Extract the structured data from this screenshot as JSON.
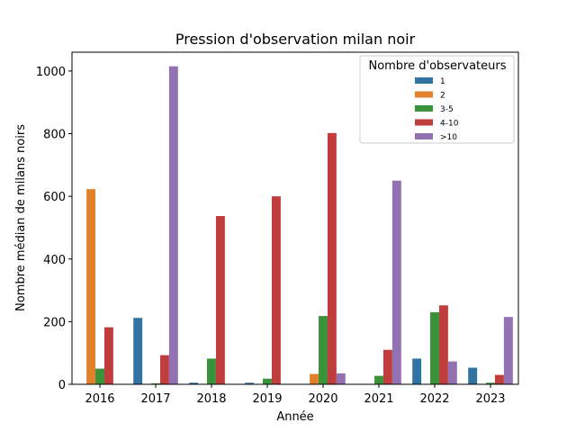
{
  "chart_data": {
    "type": "bar",
    "title": "Pression d'observation milan noir",
    "xlabel": "Année",
    "ylabel": "Nombre médian de milans noirs",
    "ylim": [
      0,
      1060
    ],
    "yticks": [
      0,
      200,
      400,
      600,
      800,
      1000
    ],
    "categories": [
      "2016",
      "2017",
      "2018",
      "2019",
      "2020",
      "2021",
      "2022",
      "2023"
    ],
    "legend_title": "Nombre d'observateurs",
    "legend_position": "top-right",
    "grid": false,
    "series": [
      {
        "name": "1",
        "color": "#3274a1",
        "values": [
          0,
          212,
          5,
          5,
          0,
          0,
          82,
          53
        ]
      },
      {
        "name": "2",
        "color": "#e1812c",
        "values": [
          623,
          0,
          0,
          0,
          33,
          0,
          0,
          0
        ]
      },
      {
        "name": "3-5",
        "color": "#3a923a",
        "values": [
          50,
          3,
          82,
          18,
          218,
          27,
          230,
          5
        ]
      },
      {
        "name": "4-10",
        "color": "#c03d3e",
        "values": [
          182,
          93,
          537,
          600,
          802,
          110,
          252,
          30
        ]
      },
      {
        "name": ">10",
        "color": "#9372b2",
        "values": [
          0,
          1015,
          0,
          0,
          35,
          650,
          73,
          215
        ]
      }
    ]
  }
}
